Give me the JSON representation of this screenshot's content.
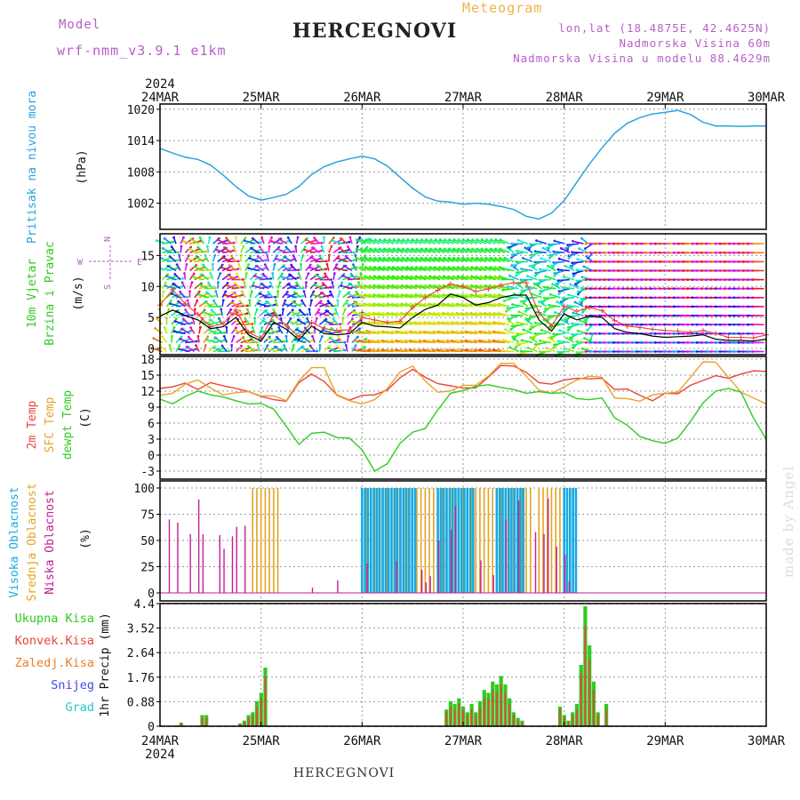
{
  "header": {
    "model_label": "Model",
    "model_run": "wrf-nmm_v3.9.1 e1km",
    "location": "HERCEGNOVI",
    "product": "Meteogram",
    "lonlat": "lon,lat (18.4875E, 42.4625N)",
    "altitude": "Nadmorska Visina 60m",
    "model_altitude": "Nadmorska Visina u modelu 88.4629m"
  },
  "footer": {
    "location": "HERCEGNOVI",
    "credit": "made by Angel"
  },
  "time_axis": {
    "year": "2024",
    "days": [
      "24MAR",
      "25MAR",
      "26MAR",
      "27MAR",
      "28MAR",
      "29MAR",
      "30MAR"
    ]
  },
  "colors": {
    "pressure": "#2aa3dc",
    "temp_2m": "#e8453c",
    "temp_sfc": "#e8a32a",
    "dewpoint": "#2ecc1f",
    "high_cloud": "#19a9e0",
    "mid_cloud": "#e3a420",
    "low_cloud": "#c51d95",
    "total_precip": "#2ecc1f",
    "conv_precip": "#e8453c",
    "frozen_precip": "#ef7d28",
    "snow": "#4446e6",
    "hail": "#28c8c8",
    "wind_mean": "#000000",
    "wind_gust": "#e8453c"
  },
  "compass": {
    "n": "N",
    "w": "W",
    "e": "E",
    "s": "S"
  },
  "chart_data": [
    {
      "type": "line",
      "name": "pressure",
      "ylabel_left": "Pritisak na nivou mora",
      "ylabel": "(hPa)",
      "yticks": [
        "1002",
        "1008",
        "1014",
        "1020"
      ],
      "ylim": [
        997,
        1021
      ],
      "grid": true,
      "x_hours": [
        0,
        3,
        6,
        9,
        12,
        15,
        18,
        21,
        24,
        27,
        30,
        33,
        36,
        39,
        42,
        45,
        48,
        51,
        54,
        57,
        60,
        63,
        66,
        69,
        72,
        75,
        78,
        81,
        84,
        87,
        90,
        93,
        96,
        99,
        102,
        105,
        108,
        111,
        114,
        117,
        120,
        123,
        126,
        129,
        132,
        135,
        138,
        141,
        144
      ],
      "series": [
        {
          "values": [
            1012.5,
            1011.6,
            1010.8,
            1010.4,
            1009.3,
            1007.4,
            1005.2,
            1003.4,
            1002.6,
            1003.1,
            1003.7,
            1005.2,
            1007.5,
            1009.0,
            1009.9,
            1010.5,
            1011.0,
            1010.5,
            1009.1,
            1007.0,
            1004.9,
            1003.2,
            1002.4,
            1002.2,
            1001.8,
            1002.0,
            1001.8,
            1001.4,
            1000.8,
            999.5,
            999.0,
            1000.1,
            1002.5,
            1006.0,
            1009.5,
            1012.6,
            1015.4,
            1017.3,
            1018.4,
            1019.1,
            1019.4,
            1019.8,
            1019.0,
            1017.5,
            1016.8,
            1016.8,
            1016.7,
            1016.8,
            1016.8
          ]
        }
      ]
    },
    {
      "type": "line",
      "name": "wind",
      "ylabel_left": "10m Vjetar Brzina i Pravac",
      "ylabel": "(m/s)",
      "yticks": [
        "0",
        "5",
        "10",
        "15"
      ],
      "ylim": [
        -1,
        18.5
      ],
      "grid": true,
      "x_hours": [
        0,
        3,
        6,
        9,
        12,
        15,
        18,
        21,
        24,
        27,
        30,
        33,
        36,
        39,
        42,
        45,
        48,
        51,
        54,
        57,
        60,
        63,
        66,
        69,
        72,
        75,
        78,
        81,
        84,
        87,
        90,
        93,
        96,
        99,
        102,
        105,
        108,
        111,
        114,
        117,
        120,
        123,
        126,
        129,
        132,
        135,
        138,
        141,
        144
      ],
      "series": [
        {
          "name": "mean",
          "values": [
            5.2,
            6.2,
            5.3,
            4.6,
            3.2,
            3.5,
            5.0,
            2.2,
            1.2,
            4.2,
            3.1,
            1.4,
            3.6,
            2.4,
            2.2,
            2.4,
            4.2,
            3.6,
            3.5,
            3.3,
            5.0,
            6.3,
            7.0,
            8.8,
            8.2,
            7.0,
            7.4,
            8.2,
            8.6,
            8.6,
            4.6,
            2.8,
            5.6,
            4.6,
            5.2,
            5.0,
            3.2,
            2.6,
            2.4,
            2.0,
            1.8,
            1.9,
            2.0,
            2.2,
            1.5,
            1.3,
            1.3,
            1.2,
            1.5
          ]
        },
        {
          "name": "gust",
          "values": [
            7.0,
            9.5,
            7.2,
            5.5,
            3.5,
            4.0,
            6.2,
            2.6,
            1.6,
            5.5,
            3.7,
            1.9,
            4.2,
            3.2,
            2.9,
            3.0,
            5.0,
            4.6,
            4.2,
            4.4,
            6.6,
            8.2,
            9.4,
            10.4,
            10.0,
            9.2,
            9.6,
            10.2,
            10.6,
            10.6,
            5.8,
            3.6,
            6.8,
            6.0,
            6.6,
            6.1,
            4.5,
            3.6,
            3.4,
            3.1,
            2.9,
            2.8,
            2.6,
            2.9,
            2.4,
            1.8,
            1.8,
            1.7,
            2.2
          ]
        }
      ]
    },
    {
      "type": "line",
      "name": "temperature",
      "ylabel_left": [
        "2m Temp",
        "SFC Temp",
        "dewpt Temp"
      ],
      "ylabel": "(C)",
      "yticks": [
        "-3",
        "0",
        "3",
        "6",
        "9",
        "12",
        "15",
        "18"
      ],
      "ylim": [
        -4.5,
        18.5
      ],
      "grid": true,
      "x_hours": [
        0,
        3,
        6,
        9,
        12,
        15,
        18,
        21,
        24,
        27,
        30,
        33,
        36,
        39,
        42,
        45,
        48,
        51,
        54,
        57,
        60,
        63,
        66,
        69,
        72,
        75,
        78,
        81,
        84,
        87,
        90,
        93,
        96,
        99,
        102,
        105,
        108,
        111,
        114,
        117,
        120,
        123,
        126,
        129,
        132,
        135,
        138,
        141,
        144
      ],
      "series": [
        {
          "name": "2m Temp",
          "values": [
            12.5,
            12.8,
            13.5,
            12.3,
            13.6,
            13.0,
            12.5,
            11.9,
            11.0,
            10.4,
            10.1,
            13.6,
            15.2,
            13.8,
            11.3,
            10.3,
            11.2,
            11.3,
            12.2,
            14.5,
            16.1,
            14.6,
            13.4,
            13.0,
            12.6,
            12.6,
            14.6,
            16.8,
            16.7,
            15.5,
            13.6,
            13.3,
            14.1,
            14.4,
            14.3,
            14.4,
            12.3,
            12.4,
            11.2,
            10.2,
            11.6,
            11.5,
            13.1,
            14.0,
            14.9,
            14.4,
            15.2,
            15.8,
            15.7
          ]
        },
        {
          "name": "SFC Temp",
          "values": [
            11.2,
            11.6,
            13.3,
            14.1,
            12.6,
            11.3,
            11.7,
            11.9,
            11.1,
            11.1,
            10.2,
            13.9,
            16.4,
            16.4,
            11.2,
            10.2,
            9.6,
            10.4,
            12.5,
            15.6,
            16.7,
            13.9,
            11.8,
            12.0,
            13.1,
            13.1,
            14.8,
            17.2,
            17.2,
            14.8,
            12.2,
            11.6,
            12.8,
            14.1,
            14.8,
            14.6,
            10.7,
            10.6,
            10.1,
            11.3,
            11.6,
            11.8,
            14.6,
            17.5,
            17.4,
            14.6,
            11.8,
            10.7,
            9.6
          ]
        },
        {
          "name": "dewpt Temp",
          "values": [
            10.5,
            9.6,
            11.0,
            12.0,
            11.3,
            10.9,
            10.2,
            9.6,
            9.7,
            8.6,
            5.4,
            2.0,
            4.1,
            4.3,
            3.3,
            3.2,
            1.0,
            -3.0,
            -1.6,
            2.2,
            4.3,
            5.0,
            8.5,
            11.6,
            12.1,
            12.9,
            13.2,
            12.7,
            12.3,
            11.6,
            11.9,
            11.6,
            11.7,
            10.6,
            10.4,
            10.7,
            7.0,
            5.6,
            3.5,
            2.7,
            2.2,
            3.2,
            6.3,
            9.8,
            12.0,
            12.5,
            11.8,
            6.9,
            3.0
          ]
        }
      ]
    },
    {
      "type": "bar",
      "name": "cloud_cover",
      "ylabel_left": [
        "Visoka Oblacnost",
        "Srednja Oblacnost",
        "Niska Oblacnost"
      ],
      "ylabel": "(%)",
      "yticks": [
        "0",
        "25",
        "50",
        "75",
        "100"
      ],
      "ylim": [
        0,
        100
      ],
      "grid": true,
      "high_clusters_hours": [
        [
          48,
          61
        ],
        [
          66,
          75
        ],
        [
          80,
          87
        ],
        [
          96,
          99
        ]
      ],
      "mid_clusters_hours": [
        [
          22,
          28
        ],
        [
          48,
          76
        ],
        [
          77,
          88
        ],
        [
          90,
          96
        ]
      ],
      "low_bars_hours": [
        2,
        4,
        7,
        9,
        10,
        14,
        15,
        17,
        18,
        20,
        36,
        42,
        49,
        56,
        62,
        63,
        64,
        66,
        69,
        70,
        76,
        79,
        82,
        85,
        89,
        91,
        92,
        94,
        96,
        97
      ],
      "low_bars_values": [
        70,
        67,
        56,
        89,
        56,
        55,
        42,
        54,
        63,
        64,
        5,
        12,
        28,
        30,
        22,
        10,
        16,
        50,
        60,
        83,
        31,
        17,
        70,
        88,
        58,
        56,
        90,
        44,
        36,
        11
      ]
    },
    {
      "type": "bar",
      "name": "precip",
      "ylabel_left": [
        "Ukupna Kisa",
        "Konvek.Kisa",
        "Zaledj.Kisa",
        "Snijeg",
        "Grad"
      ],
      "ylabel": "1hr Precip (mm)",
      "yticks": [
        "0",
        "0.88",
        "1.76",
        "2.64",
        "3.52",
        "4.4"
      ],
      "ylim": [
        0,
        4.4
      ],
      "grid": true,
      "x_hours": [
        5,
        10,
        11,
        19,
        20,
        21,
        22,
        23,
        24,
        25,
        68,
        69,
        70,
        71,
        72,
        73,
        74,
        75,
        76,
        77,
        78,
        79,
        80,
        81,
        82,
        83,
        84,
        85,
        86,
        95,
        96,
        97,
        98,
        99,
        100,
        101,
        102,
        103,
        104,
        106
      ],
      "values": [
        0.13,
        0.4,
        0.4,
        0.1,
        0.2,
        0.4,
        0.5,
        0.9,
        1.2,
        2.1,
        0.6,
        0.9,
        0.8,
        1.0,
        0.7,
        0.5,
        0.8,
        0.5,
        0.9,
        1.3,
        1.2,
        1.6,
        1.5,
        1.8,
        1.5,
        1.0,
        0.5,
        0.3,
        0.2,
        0.7,
        0.4,
        0.2,
        0.5,
        0.8,
        2.2,
        4.3,
        2.9,
        1.6,
        0.5,
        0.8
      ],
      "conv_values": [
        0.1,
        0.3,
        0.3,
        0.1,
        0.15,
        0.3,
        0.4,
        0.7,
        1.0,
        1.8,
        0.5,
        0.7,
        0.6,
        0.8,
        0.6,
        0.4,
        0.6,
        0.4,
        0.7,
        1.0,
        1.0,
        1.3,
        1.2,
        1.5,
        1.2,
        0.8,
        0.4,
        0.2,
        0.15,
        0.6,
        0.3,
        0.15,
        0.4,
        0.6,
        1.9,
        3.6,
        2.4,
        1.3,
        0.4,
        0.6
      ]
    }
  ]
}
